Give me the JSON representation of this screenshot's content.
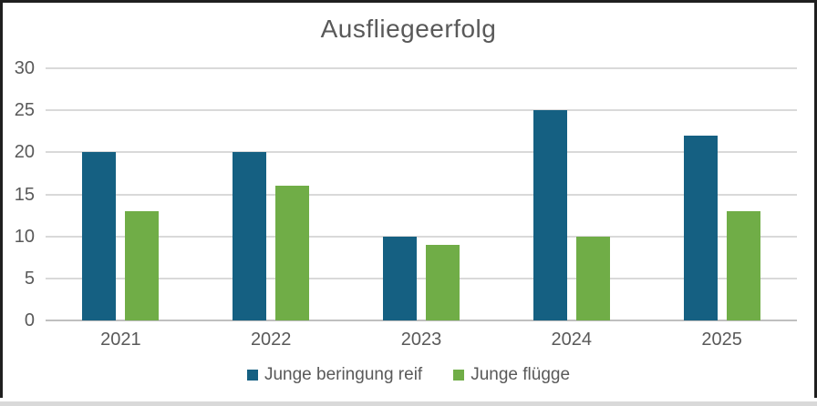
{
  "frame": {
    "border_color": "#1f1f1f",
    "bottom_strip_color": "#d9d9d9"
  },
  "chart_data": {
    "type": "bar",
    "title": "Ausfliegeerfolg",
    "categories": [
      "2021",
      "2022",
      "2023",
      "2024",
      "2025"
    ],
    "series": [
      {
        "name": "Junge beringung reif",
        "color": "#156082",
        "values": [
          20,
          20,
          10,
          25,
          22
        ]
      },
      {
        "name": "Junge flügge",
        "color": "#70AD47",
        "values": [
          13,
          16,
          9,
          10,
          13
        ]
      }
    ],
    "xlabel": "",
    "ylabel": "",
    "ylim": [
      0,
      30
    ],
    "yticks": [
      0,
      5,
      10,
      15,
      20,
      25,
      30
    ],
    "grid": true,
    "legend_position": "bottom",
    "text_color": "#595959",
    "gridline_color": "#d9d9d9",
    "axisline_color": "#bfbfbf"
  }
}
